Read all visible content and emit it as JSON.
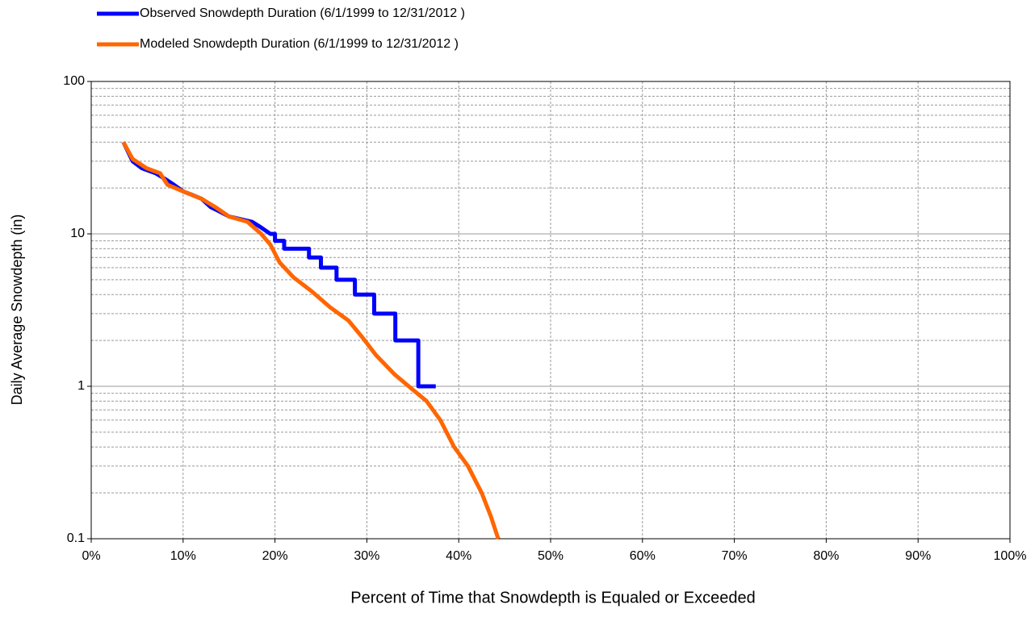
{
  "chart_data": {
    "type": "line",
    "xlabel": "Percent of Time that Snowdepth is Equaled or Exceeded",
    "ylabel": "Daily Average Snowdepth (in)",
    "xlim": [
      0,
      100
    ],
    "xticks": [
      {
        "value": 0,
        "label": "0%"
      },
      {
        "value": 10,
        "label": "10%"
      },
      {
        "value": 20,
        "label": "20%"
      },
      {
        "value": 30,
        "label": "30%"
      },
      {
        "value": 40,
        "label": "40%"
      },
      {
        "value": 50,
        "label": "50%"
      },
      {
        "value": 60,
        "label": "60%"
      },
      {
        "value": 70,
        "label": "70%"
      },
      {
        "value": 80,
        "label": "80%"
      },
      {
        "value": 90,
        "label": "90%"
      },
      {
        "value": 100,
        "label": "100%"
      }
    ],
    "ylim": [
      0.1,
      100
    ],
    "yticks": [
      0.1,
      1,
      10,
      100
    ],
    "ylog": true,
    "grid": true,
    "minor_grid": true,
    "legend": "top-left",
    "series": [
      {
        "name": "Observed Snowdepth Duration (6/1/1999 to 12/31/2012 )",
        "color": "#0000ff",
        "x": [
          3.5,
          4.5,
          5.5,
          7,
          8,
          9,
          10,
          11,
          12,
          13,
          14,
          15,
          17.5,
          18.5,
          19.5,
          20,
          20,
          21,
          21,
          23.7,
          23.7,
          25,
          25,
          26.7,
          26.7,
          28.7,
          28.7,
          30.8,
          30.8,
          33.1,
          33.1,
          35.6,
          35.6,
          37.5
        ],
        "values": [
          40,
          30,
          27,
          25,
          23,
          21,
          19,
          18,
          17,
          15,
          14,
          13,
          12,
          11,
          10,
          10,
          9,
          9,
          8,
          8,
          7,
          7,
          6,
          6,
          5,
          5,
          4,
          4,
          3,
          3,
          2,
          2,
          1,
          1
        ]
      },
      {
        "name": "Modeled Snowdepth Duration (6/1/1999 to 12/31/2012 )",
        "color": "#ff6600",
        "x": [
          3.5,
          4.5,
          6,
          7.5,
          8.3,
          10,
          12,
          13.5,
          15,
          17,
          18.5,
          19.5,
          20.5,
          22,
          24,
          26,
          28,
          29.5,
          31,
          33,
          35,
          36.5,
          38,
          39.5,
          41,
          42.5,
          43.5,
          44.3
        ],
        "values": [
          40,
          31,
          27,
          25,
          21,
          19,
          17,
          15,
          13,
          12,
          10,
          8.5,
          6.5,
          5.2,
          4.2,
          3.3,
          2.7,
          2.1,
          1.6,
          1.2,
          0.95,
          0.8,
          0.6,
          0.4,
          0.3,
          0.2,
          0.14,
          0.1
        ]
      }
    ]
  }
}
